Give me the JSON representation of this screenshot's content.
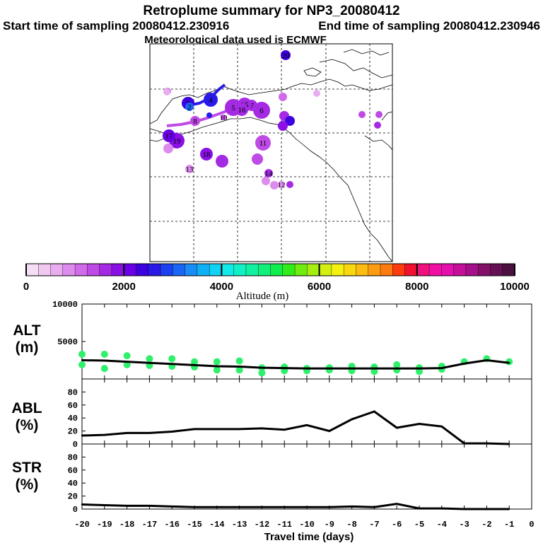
{
  "header": {
    "title": "Retroplume summary for NP3_20080412",
    "start": "Start time of sampling 20080412.230916",
    "end": "End time of sampling 20080412.230946",
    "met": "Meteorological data used is ECMWF"
  },
  "colorbar": {
    "ticks": [
      "0",
      "2000",
      "4000",
      "6000",
      "8000",
      "10000"
    ],
    "label": "Altitude (m)",
    "colors": [
      "#f6ddf6",
      "#f0c8f0",
      "#e8acef",
      "#dd8ced",
      "#d06cea",
      "#c04ae6",
      "#a52ae4",
      "#8a10e6",
      "#6a00e6",
      "#3d00de",
      "#2a1ae8",
      "#1a40f0",
      "#1a66f4",
      "#1a8cf6",
      "#10b0f6",
      "#10d2f4",
      "#10eae8",
      "#10f0c4",
      "#10f0a0",
      "#10f07a",
      "#10ee4e",
      "#30ec1a",
      "#70ec10",
      "#a6ee10",
      "#d4f010",
      "#f6f010",
      "#fad810",
      "#fcbc10",
      "#fc9c10",
      "#fc7a10",
      "#fc3c10",
      "#f01030",
      "#f0107c",
      "#f010a4",
      "#e410ae",
      "#c41098",
      "#a41088",
      "#84106a",
      "#661054",
      "#4c1040"
    ]
  },
  "map_labels": [
    {
      "text": "20",
      "color": "#3d00de"
    },
    {
      "text": "9",
      "color": "#d06cea"
    },
    {
      "text": "4",
      "color": "#2a1ae8"
    },
    {
      "text": "3",
      "color": "#3d00de"
    },
    {
      "text": "2",
      "color": "#1a66f4"
    },
    {
      "text": "5",
      "color": "#a52ae4"
    },
    {
      "text": "6",
      "color": "#a52ae4"
    },
    {
      "text": "7",
      "color": "#a52ae4"
    },
    {
      "text": "15",
      "color": "#a52ae4"
    },
    {
      "text": "16",
      "color": "#a52ae4"
    },
    {
      "text": "8",
      "color": "#c04ae6"
    },
    {
      "text": "10",
      "color": "#c04ae6"
    },
    {
      "text": "11",
      "color": "#c04ae6"
    },
    {
      "text": "18",
      "color": "#8a10e6"
    },
    {
      "text": "19",
      "color": "#8a10e6"
    },
    {
      "text": "17",
      "color": "#6a00e6"
    },
    {
      "text": "13",
      "color": "#dd8ced"
    },
    {
      "text": "14",
      "color": "#a52ae4"
    },
    {
      "text": "12",
      "color": "#dd8ced"
    }
  ],
  "chart_data": [
    {
      "type": "line",
      "panel": "ALT",
      "ylabel": "ALT (m)",
      "ylim": [
        0,
        10000
      ],
      "yticks": [
        "10000",
        "5000"
      ],
      "x": [
        -20,
        -19,
        -18,
        -17,
        -16,
        -15,
        -14,
        -13,
        -12,
        -11,
        -10,
        -9,
        -8,
        -7,
        -6,
        -5,
        -4,
        -3,
        -2,
        -1
      ],
      "series": [
        {
          "name": "median altitude",
          "values": [
            2500,
            2450,
            2300,
            2150,
            2000,
            1850,
            1700,
            1650,
            1500,
            1450,
            1400,
            1400,
            1400,
            1400,
            1400,
            1400,
            1450,
            2050,
            2500,
            2150
          ]
        },
        {
          "name": "cluster altitudes",
          "points": [
            [
              -20,
              3300
            ],
            [
              -20,
              1900
            ],
            [
              -19,
              3300
            ],
            [
              -19,
              1400
            ],
            [
              -18,
              3100
            ],
            [
              -18,
              1900
            ],
            [
              -17,
              2700
            ],
            [
              -17,
              1800
            ],
            [
              -16,
              2700
            ],
            [
              -16,
              1700
            ],
            [
              -15,
              2300
            ],
            [
              -15,
              1600
            ],
            [
              -14,
              2300
            ],
            [
              -14,
              1200
            ],
            [
              -13,
              2400
            ],
            [
              -13,
              1200
            ],
            [
              -12,
              1500
            ],
            [
              -12,
              800
            ],
            [
              -11,
              1600
            ],
            [
              -11,
              1100
            ],
            [
              -10,
              1400
            ],
            [
              -10,
              1100
            ],
            [
              -9,
              1500
            ],
            [
              -9,
              1200
            ],
            [
              -8,
              1700
            ],
            [
              -8,
              1100
            ],
            [
              -7,
              1600
            ],
            [
              -7,
              1000
            ],
            [
              -6,
              1900
            ],
            [
              -6,
              1200
            ],
            [
              -5,
              1500
            ],
            [
              -5,
              1000
            ],
            [
              -4,
              1700
            ],
            [
              -4,
              1300
            ],
            [
              -3,
              2300
            ],
            [
              -2,
              2700
            ],
            [
              -1,
              2300
            ]
          ]
        }
      ]
    },
    {
      "type": "line",
      "panel": "ABL",
      "ylabel": "ABL (%)",
      "ylim": [
        0,
        100
      ],
      "yticks": [
        "80",
        "60",
        "40",
        "20",
        "0"
      ],
      "x": [
        -20,
        -19,
        -18,
        -17,
        -16,
        -15,
        -14,
        -13,
        -12,
        -11,
        -10,
        -9,
        -8,
        -7,
        -6,
        -5,
        -4,
        -3,
        -2,
        -1
      ],
      "series": [
        {
          "name": "ABL fraction",
          "values": [
            13,
            14,
            17,
            17,
            19,
            23,
            23,
            23,
            24,
            22,
            29,
            20,
            38,
            50,
            25,
            31,
            27,
            1,
            1,
            0
          ]
        }
      ]
    },
    {
      "type": "line",
      "panel": "STR",
      "ylabel": "STR (%)",
      "ylim": [
        0,
        100
      ],
      "yticks": [
        "80",
        "60",
        "40",
        "20",
        "0"
      ],
      "x": [
        -20,
        -19,
        -18,
        -17,
        -16,
        -15,
        -14,
        -13,
        -12,
        -11,
        -10,
        -9,
        -8,
        -7,
        -6,
        -5,
        -4,
        -3,
        -2,
        -1
      ],
      "series": [
        {
          "name": "stratospheric fraction",
          "values": [
            7,
            6,
            5,
            5,
            4,
            3,
            3,
            3,
            3,
            3,
            3,
            3,
            4,
            3,
            8,
            1,
            1,
            0,
            0,
            0
          ]
        }
      ]
    }
  ],
  "xaxis": {
    "ticks": [
      "-20",
      "-19",
      "-18",
      "-17",
      "-16",
      "-15",
      "-14",
      "-13",
      "-12",
      "-11",
      "-10",
      "-9",
      "-8",
      "-7",
      "-6",
      "-5",
      "-4",
      "-3",
      "-2",
      "-1",
      "0"
    ],
    "label": "Travel time (days)"
  },
  "panel_labels": {
    "alt": [
      "ALT",
      "(m)"
    ],
    "abl": [
      "ABL",
      "(%)"
    ],
    "str": [
      "STR",
      "(%)"
    ]
  }
}
